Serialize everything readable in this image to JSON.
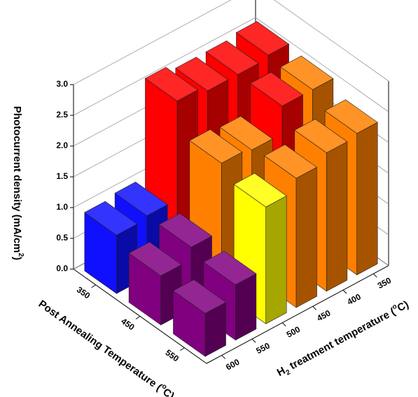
{
  "chart_data": {
    "type": "bar3d",
    "zlabel": [
      {
        "text": "Photocurrent density (mA/cm"
      },
      {
        "text": "2",
        "shift": "sup"
      },
      {
        "text": ")"
      }
    ],
    "rows_label": [
      {
        "text": "Post Annealing Temperature ("
      },
      {
        "text": "o",
        "shift": "sup"
      },
      {
        "text": "C)"
      }
    ],
    "categories_label": [
      {
        "text": "H"
      },
      {
        "text": "2",
        "shift": "sub"
      },
      {
        "text": " treatment temperature ("
      },
      {
        "text": "o",
        "shift": "sup"
      },
      {
        "text": "C)"
      }
    ],
    "rows": [
      "350",
      "450",
      "550"
    ],
    "categories": [
      "350",
      "400",
      "450",
      "500",
      "550",
      "600"
    ],
    "values": [
      [
        2.55,
        2.5,
        2.5,
        2.6,
        1.0,
        0.95
      ],
      [
        2.5,
        2.5,
        2.05,
        2.1,
        1.0,
        0.8
      ],
      [
        2.3,
        2.25,
        2.1,
        1.9,
        0.9,
        0.7
      ]
    ],
    "colors": [
      [
        "#ff0000",
        "#ff0000",
        "#ff0000",
        "#ff0000",
        "#1010ff",
        "#1010ff"
      ],
      [
        "#ff8000",
        "#ff0000",
        "#ff8000",
        "#ff8000",
        "#800080",
        "#800080"
      ],
      [
        "#ff8000",
        "#ff8000",
        "#ff8000",
        "#ffff00",
        "#800080",
        "#800080"
      ]
    ],
    "zlim": [
      0,
      3
    ],
    "zticks": [
      {
        "value": 0,
        "label": "0.0"
      },
      0.5,
      {
        "value": 1,
        "label": "1.0"
      },
      1.5,
      {
        "value": 2,
        "label": "2.0"
      },
      2.5,
      {
        "value": 3,
        "label": "3.0"
      }
    ],
    "grid": true
  }
}
